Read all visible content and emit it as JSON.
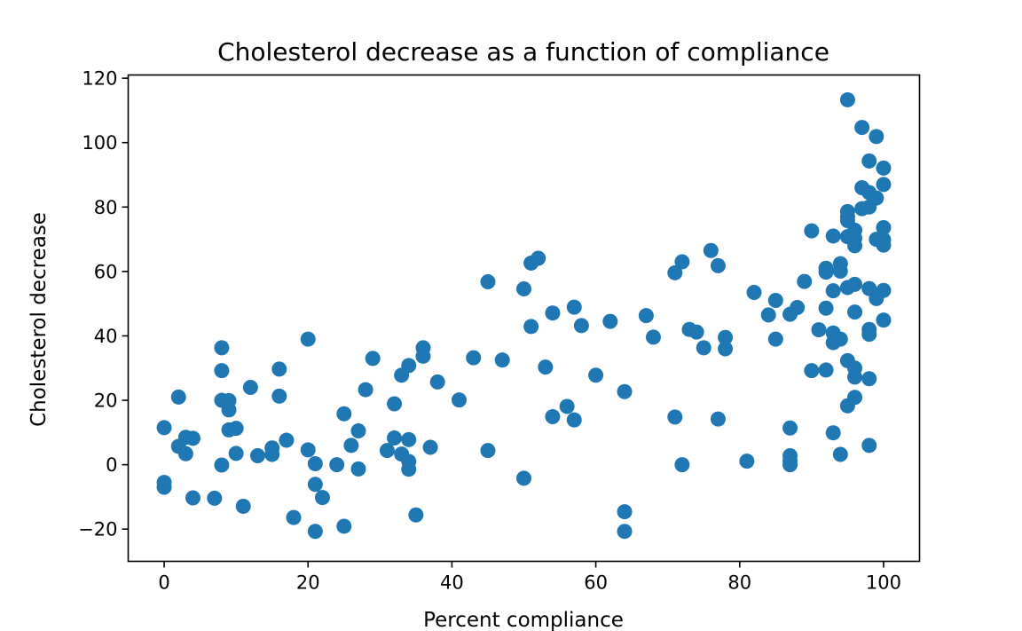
{
  "chart_data": {
    "type": "scatter",
    "title": "Cholesterol decrease as a function of compliance",
    "xlabel": "Percent compliance",
    "ylabel": "Cholesterol decrease",
    "xlim": [
      -5,
      105
    ],
    "ylim": [
      -30,
      121
    ],
    "x_ticks": [
      0,
      20,
      40,
      60,
      80,
      100
    ],
    "y_ticks": [
      -20,
      0,
      20,
      40,
      60,
      80,
      100,
      120
    ],
    "x_tick_labels": [
      "0",
      "20",
      "40",
      "60",
      "80",
      "100"
    ],
    "y_tick_labels": [
      "−20",
      "0",
      "20",
      "40",
      "60",
      "80",
      "100",
      "120"
    ],
    "grid": false,
    "legend": "none",
    "marker_color": "#1f77b4",
    "x": [
      0,
      0,
      0,
      2,
      2,
      3,
      3,
      4,
      4,
      7,
      8,
      8,
      8,
      8,
      9,
      9,
      9,
      10,
      10,
      11,
      12,
      13,
      15,
      15,
      16,
      16,
      17,
      18,
      20,
      20,
      21,
      21,
      21,
      22,
      24,
      25,
      25,
      26,
      27,
      27,
      28,
      29,
      31,
      32,
      32,
      33,
      33,
      34,
      34,
      34,
      34,
      35,
      36,
      36,
      37,
      38,
      41,
      43,
      45,
      45,
      47,
      50,
      50,
      51,
      51,
      52,
      53,
      54,
      54,
      56,
      57,
      57,
      58,
      60,
      62,
      64,
      64,
      64,
      67,
      68,
      71,
      71,
      72,
      72,
      73,
      74,
      75,
      76,
      77,
      77,
      78,
      78,
      81,
      82,
      84,
      85,
      85,
      87,
      87,
      87,
      87,
      87,
      88,
      89,
      90,
      90,
      91,
      92,
      92,
      92,
      92,
      93,
      93,
      93,
      93,
      93,
      94,
      94,
      94,
      94,
      95,
      95,
      95,
      95,
      95,
      95,
      95,
      95,
      96,
      96,
      96,
      96,
      96,
      96,
      96,
      96,
      97,
      97,
      97,
      98,
      98,
      98,
      98,
      98,
      98,
      98,
      98,
      99,
      99,
      99,
      99,
      100,
      100,
      100,
      100,
      100,
      100,
      100
    ],
    "y": [
      11.5,
      -5.5,
      -7,
      21,
      5.7,
      8.5,
      3.4,
      8.2,
      -10.3,
      -10.4,
      36.3,
      29.2,
      20,
      -0.1,
      19.9,
      17,
      10.8,
      11.3,
      3.5,
      -12.9,
      24,
      2.8,
      5.2,
      3.2,
      29.7,
      21.3,
      7.6,
      -16.4,
      39,
      4.6,
      -6.1,
      -20.7,
      0.3,
      -10.2,
      0,
      15.8,
      -19.1,
      6,
      10.5,
      -1.3,
      23.3,
      33,
      4.4,
      18.9,
      8.3,
      27.8,
      3.3,
      30.8,
      7.8,
      1,
      -1.4,
      -15.6,
      36.3,
      33.7,
      5.4,
      25.7,
      20.1,
      33.2,
      56.8,
      4.4,
      32.5,
      54.6,
      -4.2,
      62.6,
      42.9,
      64.1,
      30.3,
      47.1,
      14.9,
      18.1,
      48.9,
      13.9,
      43.2,
      27.8,
      44.5,
      22.7,
      -14.6,
      -20.7,
      46.3,
      39.6,
      59.6,
      14.8,
      63,
      0,
      42,
      41.2,
      36.3,
      66.5,
      61.8,
      14.2,
      39.5,
      36,
      1.1,
      53.5,
      46.5,
      39,
      51,
      11.4,
      2.8,
      1.2,
      0,
      46.7,
      48.8,
      56.9,
      72.6,
      29.2,
      41.9,
      61,
      59.8,
      48.6,
      29.4,
      71,
      54,
      40.9,
      37.9,
      9.9,
      62.4,
      60.1,
      39,
      3.2,
      113.3,
      78.6,
      75.8,
      70.8,
      55,
      32.3,
      18.3,
      77,
      72.8,
      68,
      56,
      47.4,
      30,
      27.2,
      20.9,
      70.3,
      86,
      79.5,
      104.7,
      94.3,
      80,
      54.7,
      42,
      40.5,
      26.7,
      6,
      84.5,
      82.8,
      70,
      51.6,
      101.9,
      92.1,
      87,
      73.6,
      69.9,
      68.2,
      54.1,
      44.9
    ]
  }
}
